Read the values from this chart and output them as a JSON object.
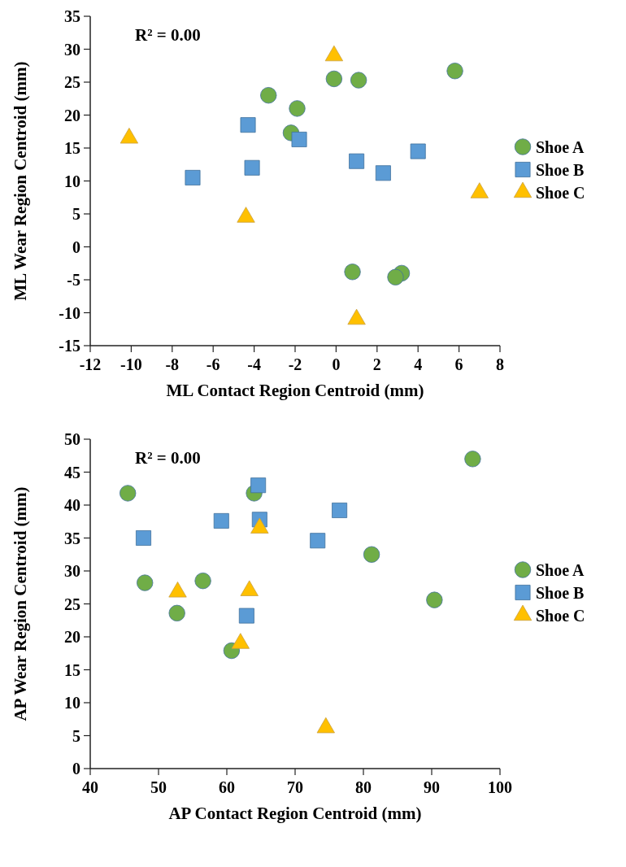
{
  "chart_data": [
    {
      "type": "scatter",
      "xlabel": "ML Contact Region Centroid (mm)",
      "ylabel": "ML Wear Region Centroid (mm)",
      "annotations": [
        "R² = 0.00"
      ],
      "xlim": [
        -12,
        8
      ],
      "xticks": [
        -12,
        -10,
        -8,
        -6,
        -4,
        -2,
        0,
        2,
        4,
        6,
        8
      ],
      "ylim": [
        -15,
        35
      ],
      "yticks": [
        -15,
        -10,
        -5,
        0,
        5,
        10,
        15,
        20,
        25,
        30,
        35
      ],
      "grid": false,
      "legend": "right",
      "series": [
        {
          "name": "Shoe A",
          "color": "#70ad47",
          "marker": "circle",
          "x": [
            -3.3,
            -1.9,
            -2.2,
            -0.1,
            1.1,
            5.8,
            0.8,
            3.2,
            2.9
          ],
          "values": [
            23,
            21,
            17.3,
            25.5,
            25.3,
            26.7,
            -3.8,
            -4,
            -4.6
          ]
        },
        {
          "name": "Shoe B",
          "color": "#5b9bd5",
          "marker": "square",
          "x": [
            -7,
            -4.3,
            -4.1,
            -1.8,
            1,
            2.3,
            4
          ],
          "values": [
            10.5,
            18.5,
            12,
            16.3,
            13,
            11.2,
            14.5
          ]
        },
        {
          "name": "Shoe C",
          "color": "#ffc000",
          "marker": "triangle",
          "x": [
            -10.1,
            -4.4,
            -0.1,
            1,
            7
          ],
          "values": [
            16.5,
            4.5,
            29,
            -11,
            8.2
          ]
        }
      ]
    },
    {
      "type": "scatter",
      "xlabel": "AP Contact Region Centroid (mm)",
      "ylabel": "AP Wear Region Centroid (mm)",
      "annotations": [
        "R² = 0.00"
      ],
      "xlim": [
        40,
        100
      ],
      "xticks": [
        40,
        50,
        60,
        70,
        80,
        90,
        100
      ],
      "ylim": [
        0,
        50
      ],
      "yticks": [
        0,
        5,
        10,
        15,
        20,
        25,
        30,
        35,
        40,
        45,
        50
      ],
      "grid": false,
      "legend": "right",
      "series": [
        {
          "name": "Shoe A",
          "color": "#70ad47",
          "marker": "circle",
          "x": [
            45.5,
            48,
            52.7,
            56.5,
            60.7,
            64,
            81.2,
            90.4,
            96
          ],
          "values": [
            41.8,
            28.2,
            23.6,
            28.5,
            17.9,
            41.8,
            32.5,
            25.6,
            47
          ]
        },
        {
          "name": "Shoe B",
          "color": "#5b9bd5",
          "marker": "square",
          "x": [
            47.8,
            59.2,
            64.6,
            64.8,
            73.3,
            76.5,
            62.9
          ],
          "values": [
            35,
            37.6,
            43,
            37.8,
            34.6,
            39.2,
            23.2
          ]
        },
        {
          "name": "Shoe C",
          "color": "#ffc000",
          "marker": "triangle",
          "x": [
            52.8,
            63.3,
            62,
            64.8,
            74.5
          ],
          "values": [
            26.8,
            27,
            19,
            36.5,
            6.2
          ]
        }
      ]
    }
  ]
}
